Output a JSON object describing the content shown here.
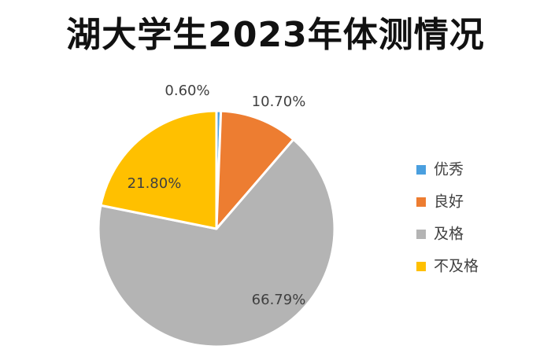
{
  "chart_data": {
    "type": "pie",
    "title": "湖大学生2023年体测情况",
    "legend_position": "right",
    "categories": [
      "优秀",
      "良好",
      "及格",
      "不及格"
    ],
    "values": [
      0.6,
      10.7,
      66.79,
      21.8
    ],
    "data_labels": [
      "0.60%",
      "10.70%",
      "66.79%",
      "21.80%"
    ],
    "unit": "%",
    "colors": [
      "#4a9fdf",
      "#ed7d31",
      "#b4b4b4",
      "#ffc000"
    ]
  }
}
